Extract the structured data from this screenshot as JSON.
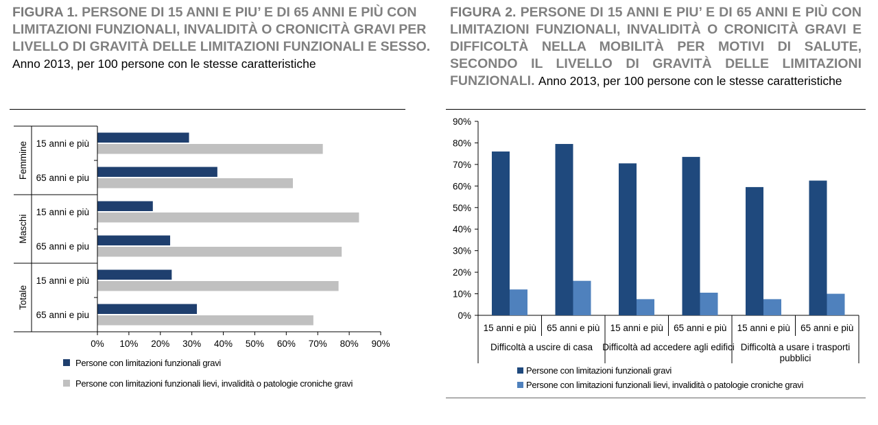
{
  "figure1": {
    "title_label": "FIGURA 1.",
    "title_text": "PERSONE DI 15 ANNI E PIU’ E DI 65 ANNI E PIÙ CON LIMITAZIONI FUNZIONALI, INVALIDITÀ O CRONICITÀ GRAVI PER LIVELLO DI GRAVITÀ DELLE LIMITAZIONI FUNZIONALI E SESSO.",
    "subtitle": "Anno 2013, per 100 persone con le stesse caratteristiche"
  },
  "figure2": {
    "title_label": "FIGURA 2.",
    "title_text": "PERSONE DI 15 ANNI E PIU’ E DI 65 ANNI E PIÙ CON LIMITAZIONI FUNZIONALI, INVALIDITÀ O CRONICITÀ GRAVI E DIFFICOLTÀ NELLA MOBILITÀ PER MOTIVI DI SALUTE, SECONDO IL LIVELLO DI GRAVITÀ DELLE LIMITAZIONI FUNZIONALI.",
    "subtitle": "Anno 2013, per 100 persone con le stesse caratteristiche"
  },
  "chart_data": [
    {
      "type": "bar",
      "orientation": "horizontal",
      "groups": [
        {
          "name": "Femmine",
          "categories": [
            "15 anni e più",
            "65 anni e piu"
          ]
        },
        {
          "name": "Maschi",
          "categories": [
            "15 anni e più",
            "65 anni e piu"
          ]
        },
        {
          "name": "Totale",
          "categories": [
            "15 anni e più",
            "65 anni e piu"
          ]
        }
      ],
      "series": [
        {
          "name": "Persone con limitazioni funzionali gravi",
          "color": "#1f3f6e",
          "values": [
            29,
            38,
            17.5,
            23,
            23.5,
            31.5
          ]
        },
        {
          "name": "Persone con limitazioni funzionali lievi, invalidità o patologie croniche gravi",
          "color": "#c0c0c0",
          "values": [
            71.5,
            62,
            83,
            77.5,
            76.5,
            68.5
          ]
        }
      ],
      "xlim": [
        0,
        90
      ],
      "xticks": [
        "0%",
        "10%",
        "20%",
        "30%",
        "40%",
        "50%",
        "60%",
        "70%",
        "80%",
        "90%"
      ],
      "legend_position": "bottom",
      "grid": false
    },
    {
      "type": "bar",
      "orientation": "vertical",
      "groups": [
        {
          "name": "Difficoltà a uscire di casa",
          "categories": [
            "15 anni e più",
            "65 anni e più"
          ]
        },
        {
          "name": "Difficoltà ad accedere agli edifici",
          "categories": [
            "15 anni e più",
            "65 anni e più"
          ]
        },
        {
          "name": "Difficoltà a usare i trasporti pubblici",
          "categories": [
            "15 anni e più",
            "65 anni e più"
          ]
        }
      ],
      "series": [
        {
          "name": "Persone con limitazioni funzionali gravi",
          "color": "#1f497d",
          "values": [
            76,
            79.5,
            70.5,
            73.5,
            59.5,
            62.5
          ]
        },
        {
          "name": "Persone con limitazioni funzionali lievi, invalidità o patologie croniche gravi",
          "color": "#4f81bd",
          "values": [
            12,
            16,
            7.5,
            10.5,
            7.5,
            10
          ]
        }
      ],
      "ylim": [
        0,
        90
      ],
      "yticks": [
        "0%",
        "10%",
        "20%",
        "30%",
        "40%",
        "50%",
        "60%",
        "70%",
        "80%",
        "90%"
      ],
      "legend_position": "bottom",
      "grid": false
    }
  ]
}
